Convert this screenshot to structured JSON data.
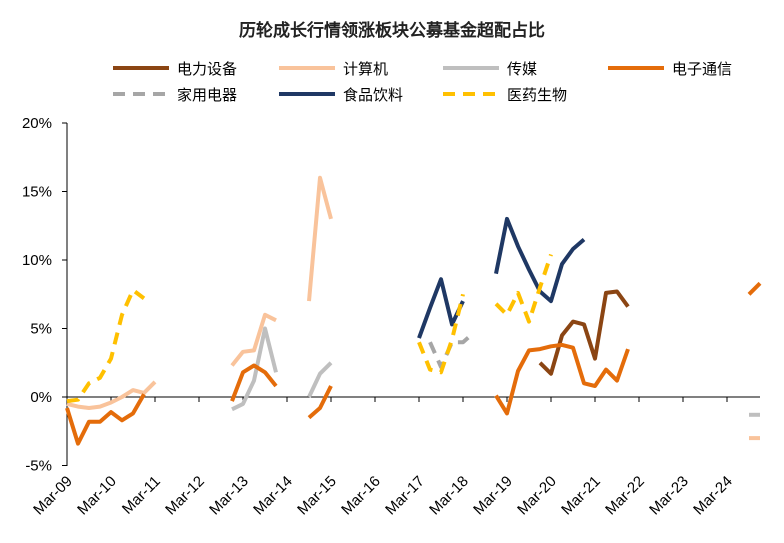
{
  "chart_data": {
    "type": "line",
    "title": "历轮成长行情领涨板块公募基金超配占比",
    "xlabel": "",
    "ylabel": "",
    "ylim": [
      -0.05,
      0.2
    ],
    "yticks": [
      "-5%",
      "0%",
      "5%",
      "10%",
      "15%",
      "20%"
    ],
    "ytick_values": [
      -0.05,
      0,
      0.05,
      0.1,
      0.15,
      0.2
    ],
    "xlim": [
      "2009-03",
      "2024-12"
    ],
    "x_ticks": [
      "Mar-09",
      "Mar-10",
      "Mar-11",
      "Mar-12",
      "Mar-13",
      "Mar-14",
      "Mar-15",
      "Mar-16",
      "Mar-17",
      "Mar-18",
      "Mar-19",
      "Mar-20",
      "Mar-21",
      "Mar-22",
      "Mar-23",
      "Mar-24"
    ],
    "x_tick_dates": [
      "2009-03",
      "2010-03",
      "2011-03",
      "2012-03",
      "2013-03",
      "2014-03",
      "2015-03",
      "2016-03",
      "2017-03",
      "2018-03",
      "2019-03",
      "2020-03",
      "2021-03",
      "2022-03",
      "2023-03",
      "2024-03"
    ],
    "legend_position": "top",
    "series": [
      {
        "name": "电力设备",
        "color": "#8B4513",
        "dash": "solid",
        "segments": [
          [
            [
              "2019-12",
              0.025
            ],
            [
              "2020-03",
              0.017
            ],
            [
              "2020-06",
              0.045
            ],
            [
              "2020-09",
              0.055
            ],
            [
              "2020-12",
              0.053
            ],
            [
              "2021-03",
              0.028
            ],
            [
              "2021-06",
              0.076
            ],
            [
              "2021-09",
              0.077
            ],
            [
              "2021-12",
              0.066
            ]
          ]
        ]
      },
      {
        "name": "计算机",
        "color": "#F9C39B",
        "dash": "solid",
        "segments": [
          [
            [
              "2009-03",
              -0.005
            ],
            [
              "2009-06",
              -0.007
            ],
            [
              "2009-09",
              -0.008
            ],
            [
              "2009-12",
              -0.007
            ],
            [
              "2010-03",
              -0.004
            ],
            [
              "2010-06",
              0.0
            ],
            [
              "2010-09",
              0.005
            ],
            [
              "2010-12",
              0.003
            ],
            [
              "2011-03",
              0.011
            ]
          ],
          [
            [
              "2012-12",
              0.023
            ],
            [
              "2013-03",
              0.033
            ],
            [
              "2013-06",
              0.034
            ],
            [
              "2013-09",
              0.06
            ],
            [
              "2013-12",
              0.056
            ]
          ],
          [
            [
              "2014-09",
              0.07
            ],
            [
              "2014-12",
              0.16
            ],
            [
              "2015-03",
              0.13
            ]
          ],
          [
            [
              "2024-09",
              -0.03
            ],
            [
              "2024-12",
              -0.03
            ]
          ]
        ]
      },
      {
        "name": "传媒",
        "color": "#BFBFBF",
        "dash": "solid",
        "segments": [
          [
            [
              "2012-12",
              -0.009
            ],
            [
              "2013-03",
              -0.005
            ],
            [
              "2013-06",
              0.012
            ],
            [
              "2013-09",
              0.05
            ],
            [
              "2013-12",
              0.018
            ]
          ],
          [
            [
              "2014-09",
              0.0
            ],
            [
              "2014-12",
              0.017
            ],
            [
              "2015-03",
              0.025
            ]
          ],
          [
            [
              "2024-09",
              -0.013
            ],
            [
              "2024-12",
              -0.013
            ]
          ]
        ]
      },
      {
        "name": "电子通信",
        "color": "#E46C0A",
        "dash": "solid",
        "segments": [
          [
            [
              "2009-03",
              -0.008
            ],
            [
              "2009-06",
              -0.034
            ],
            [
              "2009-09",
              -0.018
            ],
            [
              "2009-12",
              -0.018
            ],
            [
              "2010-03",
              -0.011
            ],
            [
              "2010-06",
              -0.017
            ],
            [
              "2010-09",
              -0.012
            ],
            [
              "2010-12",
              0.002
            ]
          ],
          [
            [
              "2012-12",
              -0.003
            ],
            [
              "2013-03",
              0.018
            ],
            [
              "2013-06",
              0.023
            ],
            [
              "2013-09",
              0.018
            ],
            [
              "2013-12",
              0.008
            ]
          ],
          [
            [
              "2014-09",
              -0.015
            ],
            [
              "2014-12",
              -0.008
            ],
            [
              "2015-03",
              0.008
            ]
          ],
          [
            [
              "2018-12",
              0.001
            ],
            [
              "2019-03",
              -0.012
            ],
            [
              "2019-06",
              0.019
            ],
            [
              "2019-09",
              0.034
            ],
            [
              "2019-12",
              0.035
            ],
            [
              "2020-03",
              0.037
            ],
            [
              "2020-06",
              0.038
            ],
            [
              "2020-09",
              0.036
            ],
            [
              "2020-12",
              0.01
            ],
            [
              "2021-03",
              0.008
            ],
            [
              "2021-06",
              0.02
            ],
            [
              "2021-09",
              0.012
            ],
            [
              "2021-12",
              0.035
            ]
          ],
          [
            [
              "2024-09",
              0.075
            ],
            [
              "2024-12",
              0.083
            ]
          ]
        ]
      },
      {
        "name": "家用电器",
        "color": "#A6A6A6",
        "dash": "dash",
        "segments": [
          [
            [
              "2017-06",
              0.04
            ],
            [
              "2017-09",
              0.022
            ],
            [
              "2017-12",
              0.04
            ],
            [
              "2018-03",
              0.04
            ],
            [
              "2018-06",
              0.047
            ]
          ]
        ]
      },
      {
        "name": "食品饮料",
        "color": "#1F3864",
        "dash": "solid",
        "segments": [
          [
            [
              "2017-03",
              0.043
            ],
            [
              "2017-06",
              0.065
            ],
            [
              "2017-09",
              0.086
            ],
            [
              "2017-12",
              0.053
            ],
            [
              "2018-03",
              0.07
            ]
          ],
          [
            [
              "2018-12",
              0.09
            ],
            [
              "2019-03",
              0.13
            ],
            [
              "2019-06",
              0.11
            ],
            [
              "2019-09",
              0.093
            ],
            [
              "2019-12",
              0.077
            ],
            [
              "2020-03",
              0.07
            ],
            [
              "2020-06",
              0.097
            ],
            [
              "2020-09",
              0.108
            ],
            [
              "2020-12",
              0.115
            ]
          ]
        ]
      },
      {
        "name": "医药生物",
        "color": "#FFC000",
        "dash": "dash",
        "segments": [
          [
            [
              "2009-03",
              -0.003
            ],
            [
              "2009-06",
              -0.002
            ],
            [
              "2009-09",
              0.01
            ],
            [
              "2009-12",
              0.014
            ],
            [
              "2010-03",
              0.028
            ],
            [
              "2010-06",
              0.06
            ],
            [
              "2010-09",
              0.078
            ],
            [
              "2010-12",
              0.072
            ]
          ],
          [
            [
              "2017-03",
              0.04
            ],
            [
              "2017-06",
              0.02
            ],
            [
              "2017-09",
              0.018
            ],
            [
              "2017-12",
              0.042
            ],
            [
              "2018-03",
              0.075
            ]
          ],
          [
            [
              "2018-12",
              0.068
            ],
            [
              "2019-03",
              0.06
            ],
            [
              "2019-06",
              0.076
            ],
            [
              "2019-09",
              0.055
            ],
            [
              "2019-12",
              0.08
            ],
            [
              "2020-03",
              0.104
            ]
          ]
        ]
      }
    ]
  }
}
